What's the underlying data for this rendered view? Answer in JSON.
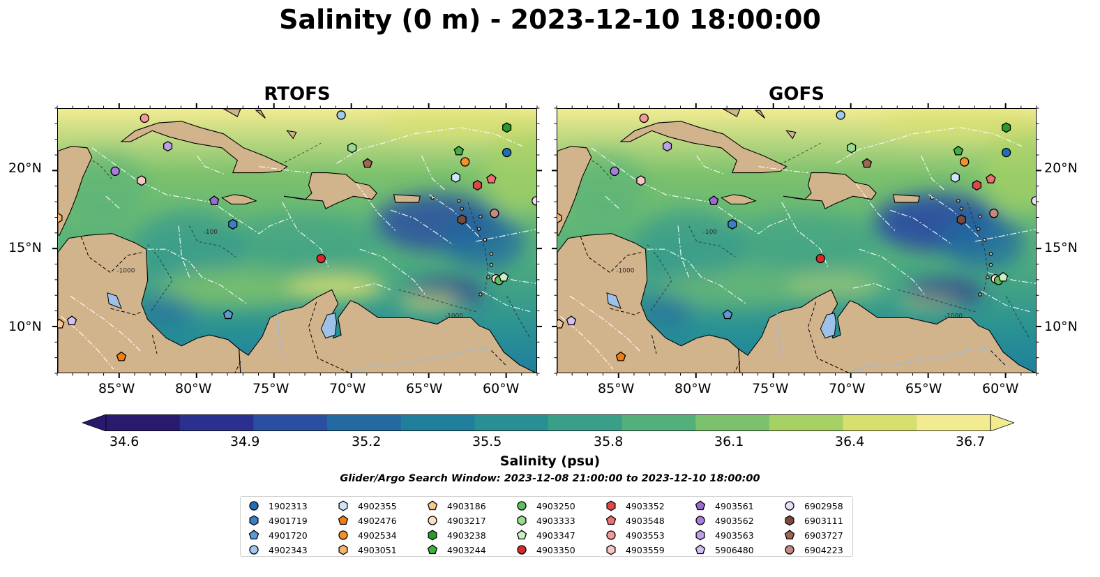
{
  "title": "Salinity (0 m) - 2023-12-10 18:00:00",
  "panels": [
    {
      "title": "RTOFS"
    },
    {
      "title": "GOFS"
    }
  ],
  "lat_ticks": [
    "20°N",
    "15°N",
    "10°N"
  ],
  "lon_ticks": [
    "85°W",
    "80°W",
    "75°W",
    "70°W",
    "65°W",
    "60°W"
  ],
  "contour_labels": [
    "-100",
    "-1000"
  ],
  "colorbar": {
    "ticks": [
      "34.6",
      "34.9",
      "35.2",
      "35.5",
      "35.8",
      "36.1",
      "36.4",
      "36.7"
    ],
    "label": "Salinity (psu)",
    "subtitle": "Glider/Argo Search Window: 2023-12-08 21:00:00 to 2023-12-10 18:00:00",
    "range": [
      34.6,
      36.7
    ],
    "colors": [
      "#2a1a6e",
      "#2b2f8f",
      "#2a4fa0",
      "#226aa0",
      "#1f7f9c",
      "#288f95",
      "#3a9f89",
      "#53b07b",
      "#7cc16d",
      "#a8d165",
      "#d7df6e",
      "#f2eb91"
    ]
  },
  "colors": {
    "land": "#d2b48c",
    "lake": "#9ec1e8",
    "river": "#a6b8cc"
  },
  "legend": {
    "items": [
      {
        "id": "1902313",
        "marker": "circle",
        "color": "#1f6fb4"
      },
      {
        "id": "4901719",
        "marker": "hexagon",
        "color": "#3b7fc4"
      },
      {
        "id": "4901720",
        "marker": "pentagon",
        "color": "#5a9ad6"
      },
      {
        "id": "4902343",
        "marker": "circle",
        "color": "#9fc9ee"
      },
      {
        "id": "4902355",
        "marker": "hexagon",
        "color": "#cfe6fa"
      },
      {
        "id": "4902476",
        "marker": "pentagon",
        "color": "#f07f10"
      },
      {
        "id": "4902534",
        "marker": "circle",
        "color": "#f5902a"
      },
      {
        "id": "4903051",
        "marker": "hexagon",
        "color": "#f7b36a"
      },
      {
        "id": "4903186",
        "marker": "pentagon",
        "color": "#f8c890"
      },
      {
        "id": "4903217",
        "marker": "circle",
        "color": "#fbe0c2"
      },
      {
        "id": "4903238",
        "marker": "hexagon",
        "color": "#2a9a2a"
      },
      {
        "id": "4903244",
        "marker": "pentagon",
        "color": "#40b040"
      },
      {
        "id": "4903250",
        "marker": "circle",
        "color": "#5cc05c"
      },
      {
        "id": "4903333",
        "marker": "hexagon",
        "color": "#98dc90"
      },
      {
        "id": "4903347",
        "marker": "pentagon",
        "color": "#c8f0c0"
      },
      {
        "id": "4903350",
        "marker": "circle",
        "color": "#d62a2a"
      },
      {
        "id": "4903352",
        "marker": "hexagon",
        "color": "#e04848"
      },
      {
        "id": "4903548",
        "marker": "pentagon",
        "color": "#ec7070"
      },
      {
        "id": "4903553",
        "marker": "circle",
        "color": "#f29a9a"
      },
      {
        "id": "4903559",
        "marker": "hexagon",
        "color": "#f8c4c4"
      },
      {
        "id": "4903561",
        "marker": "pentagon",
        "color": "#9a6ad0"
      },
      {
        "id": "4903562",
        "marker": "circle",
        "color": "#a97ddb"
      },
      {
        "id": "4903563",
        "marker": "hexagon",
        "color": "#bf9ee6"
      },
      {
        "id": "5906480",
        "marker": "pentagon",
        "color": "#d3bff0"
      },
      {
        "id": "6902958",
        "marker": "circle",
        "color": "#ecdcf8"
      },
      {
        "id": "6903111",
        "marker": "hexagon",
        "color": "#7a4a3a"
      },
      {
        "id": "6903727",
        "marker": "pentagon",
        "color": "#9a6656"
      },
      {
        "id": "6904223",
        "marker": "circle",
        "color": "#c48a82"
      }
    ]
  },
  "floats": [
    {
      "id": "1902313",
      "lon": -60.0,
      "lat": 21.2
    },
    {
      "id": "4901719",
      "lon": -77.7,
      "lat": 16.6
    },
    {
      "id": "4901720",
      "lon": -78.0,
      "lat": 10.8
    },
    {
      "id": "4902343",
      "lon": -70.7,
      "lat": 23.6
    },
    {
      "id": "4902355",
      "lon": -63.3,
      "lat": 19.6
    },
    {
      "id": "4902476",
      "lon": -84.9,
      "lat": 8.1
    },
    {
      "id": "4902534",
      "lon": -62.7,
      "lat": 20.6
    },
    {
      "id": "4903051",
      "lon": -89.0,
      "lat": 17.0
    },
    {
      "id": "4903186",
      "lon": -88.9,
      "lat": 10.2
    },
    {
      "id": "4903217",
      "lon": -60.7,
      "lat": 13.1
    },
    {
      "id": "4903238",
      "lon": -60.0,
      "lat": 22.8
    },
    {
      "id": "4903244",
      "lon": -63.1,
      "lat": 21.3
    },
    {
      "id": "4903250",
      "lon": -60.5,
      "lat": 13.0
    },
    {
      "id": "4903333",
      "lon": -70.0,
      "lat": 21.5
    },
    {
      "id": "4903347",
      "lon": -60.2,
      "lat": 13.2
    },
    {
      "id": "4903350",
      "lon": -72.0,
      "lat": 14.4
    },
    {
      "id": "4903352",
      "lon": -61.9,
      "lat": 19.1
    },
    {
      "id": "4903548",
      "lon": -61.0,
      "lat": 19.5
    },
    {
      "id": "4903553",
      "lon": -83.4,
      "lat": 23.4
    },
    {
      "id": "4903559",
      "lon": -83.6,
      "lat": 19.4
    },
    {
      "id": "4903561",
      "lon": -78.9,
      "lat": 18.1
    },
    {
      "id": "4903562",
      "lon": -85.3,
      "lat": 20.0
    },
    {
      "id": "4903563",
      "lon": -81.9,
      "lat": 21.6
    },
    {
      "id": "5906480",
      "lon": -88.1,
      "lat": 10.4
    },
    {
      "id": "6902958",
      "lon": -58.1,
      "lat": 18.1
    },
    {
      "id": "6903111",
      "lon": -62.9,
      "lat": 16.9
    },
    {
      "id": "6903727",
      "lon": -69.0,
      "lat": 20.5
    },
    {
      "id": "6904223",
      "lon": -60.8,
      "lat": 17.3
    }
  ]
}
